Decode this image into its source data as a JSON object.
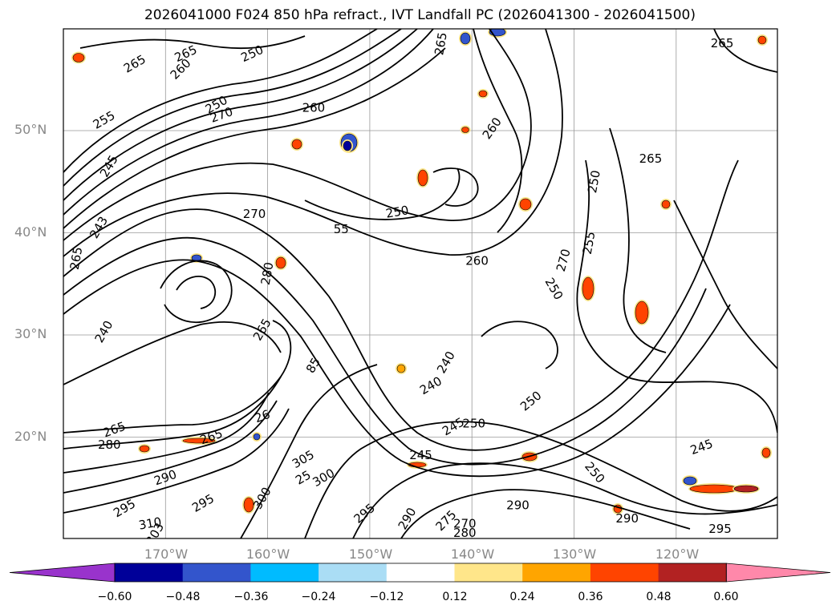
{
  "title": "2026041000 F024 850 hPa refract., IVT Landfall PC (2026041300 - 2026041500)",
  "lat_labels": [
    "50°N",
    "40°N",
    "30°N",
    "20°N"
  ],
  "lon_labels": [
    "170°W",
    "160°W",
    "150°W",
    "140°W",
    "130°W",
    "120°W"
  ],
  "colorbar": {
    "colors": [
      "#9933cc",
      "#000099",
      "#3355cc",
      "#00bbff",
      "#aaddf5",
      "#ffffff",
      "#ffe68a",
      "#ffa500",
      "#ff4400",
      "#b22222",
      "#ff88aa"
    ],
    "ticks": [
      "−0.60",
      "−0.48",
      "−0.36",
      "−0.24",
      "−0.12",
      "0.12",
      "0.24",
      "0.36",
      "0.48",
      "0.60"
    ]
  },
  "contour_labels": [
    {
      "text": "265",
      "lat": 57.5,
      "lon": -168,
      "rot": -25
    },
    {
      "text": "250",
      "lat": 57.5,
      "lon": -161.5,
      "rot": -25
    },
    {
      "text": "265",
      "lat": 56.5,
      "lon": -173,
      "rot": -30
    },
    {
      "text": "260",
      "lat": 56,
      "lon": -168.5,
      "rot": -45
    },
    {
      "text": "255",
      "lat": 51,
      "lon": -176,
      "rot": -30
    },
    {
      "text": "250",
      "lat": 52.5,
      "lon": -165,
      "rot": -30
    },
    {
      "text": "270",
      "lat": 51.5,
      "lon": -164.5,
      "rot": -20
    },
    {
      "text": "260",
      "lat": 52.2,
      "lon": -155.5,
      "rot": 0
    },
    {
      "text": "265",
      "lat": 58.5,
      "lon": -143,
      "rot": -80
    },
    {
      "text": "260",
      "lat": 50.2,
      "lon": -138,
      "rot": -55
    },
    {
      "text": "265",
      "lat": 58.5,
      "lon": -115.5,
      "rot": 0
    },
    {
      "text": "245",
      "lat": 46.5,
      "lon": -175.5,
      "rot": -60
    },
    {
      "text": "243",
      "lat": 40.5,
      "lon": -176.5,
      "rot": -60
    },
    {
      "text": "265",
      "lat": 37.5,
      "lon": -178.7,
      "rot": -80
    },
    {
      "text": "270",
      "lat": 41.8,
      "lon": -161.3,
      "rot": 0
    },
    {
      "text": "55",
      "lat": 40.3,
      "lon": -152.8,
      "rot": 0
    },
    {
      "text": "250",
      "lat": 42,
      "lon": -147.3,
      "rot": -10
    },
    {
      "text": "260",
      "lat": 37.2,
      "lon": -139.5,
      "rot": 0
    },
    {
      "text": "270",
      "lat": 37.3,
      "lon": -131,
      "rot": -75
    },
    {
      "text": "250",
      "lat": 34.5,
      "lon": -132,
      "rot": 60
    },
    {
      "text": "255",
      "lat": 39,
      "lon": -128.5,
      "rot": -80
    },
    {
      "text": "250",
      "lat": 45,
      "lon": -128,
      "rot": -80
    },
    {
      "text": "265",
      "lat": 47.2,
      "lon": -122.5,
      "rot": 0
    },
    {
      "text": "240",
      "lat": 30.3,
      "lon": -176,
      "rot": -60
    },
    {
      "text": "265",
      "lat": 30.5,
      "lon": -160.5,
      "rot": -60
    },
    {
      "text": "280",
      "lat": 36,
      "lon": -160,
      "rot": -80
    },
    {
      "text": "85",
      "lat": 27,
      "lon": -155.5,
      "rot": -60
    },
    {
      "text": "240",
      "lat": 27.3,
      "lon": -142.5,
      "rot": -60
    },
    {
      "text": "240",
      "lat": 25,
      "lon": -144,
      "rot": -30
    },
    {
      "text": "245",
      "lat": 21,
      "lon": -141.8,
      "rot": -30
    },
    {
      "text": "250",
      "lat": 21.3,
      "lon": -139.8,
      "rot": 0
    },
    {
      "text": "250",
      "lat": 23.5,
      "lon": -134.2,
      "rot": -40
    },
    {
      "text": "245",
      "lat": 18.2,
      "lon": -145,
      "rot": 0
    },
    {
      "text": "245",
      "lat": 19,
      "lon": -117.5,
      "rot": -20
    },
    {
      "text": "250",
      "lat": 16.5,
      "lon": -128,
      "rot": 50
    },
    {
      "text": "265",
      "lat": 20.7,
      "lon": -175,
      "rot": -20
    },
    {
      "text": "280",
      "lat": 19.2,
      "lon": -175.5,
      "rot": 0
    },
    {
      "text": "26",
      "lat": 22,
      "lon": -160.5,
      "rot": -20
    },
    {
      "text": "265",
      "lat": 20,
      "lon": -165.5,
      "rot": -20
    },
    {
      "text": "290",
      "lat": 16,
      "lon": -170,
      "rot": -20
    },
    {
      "text": "295",
      "lat": 13,
      "lon": -174,
      "rot": -30
    },
    {
      "text": "295",
      "lat": 13.5,
      "lon": -166.3,
      "rot": -30
    },
    {
      "text": "300",
      "lat": 14,
      "lon": -160.5,
      "rot": -60
    },
    {
      "text": "305",
      "lat": 17.8,
      "lon": -156.5,
      "rot": -30
    },
    {
      "text": "300",
      "lat": 16,
      "lon": -154.5,
      "rot": -30
    },
    {
      "text": "295",
      "lat": 12.5,
      "lon": -150.5,
      "rot": -40
    },
    {
      "text": "310",
      "lat": 11.5,
      "lon": -171.5,
      "rot": -10
    },
    {
      "text": "303",
      "lat": 10.5,
      "lon": -171,
      "rot": -60
    },
    {
      "text": "290",
      "lat": 12,
      "lon": -146.3,
      "rot": -60
    },
    {
      "text": "275",
      "lat": 11.8,
      "lon": -142.5,
      "rot": -45
    },
    {
      "text": "270",
      "lat": 11.5,
      "lon": -140.7,
      "rot": 0
    },
    {
      "text": "280",
      "lat": 10.6,
      "lon": -140.7,
      "rot": 0
    },
    {
      "text": "290",
      "lat": 13.3,
      "lon": -135.5,
      "rot": 0
    },
    {
      "text": "290",
      "lat": 12,
      "lon": -124.8,
      "rot": 0
    },
    {
      "text": "295",
      "lat": 11,
      "lon": -115.7,
      "rot": 0
    },
    {
      "text": "25",
      "lat": 16,
      "lon": -156.5,
      "rot": -30
    }
  ]
}
